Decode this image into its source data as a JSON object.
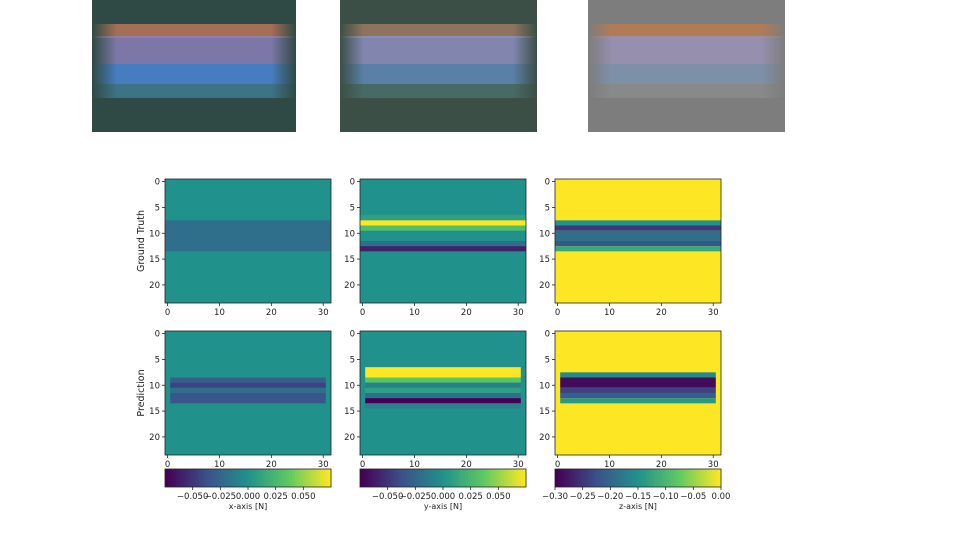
{
  "photos": [
    {
      "name": "tactile-image-1",
      "base": "#2f4a44",
      "bands": [
        "#b8745a",
        "#8a7fb8",
        "#4a86d6",
        "#3f7a92"
      ]
    },
    {
      "name": "tactile-image-2",
      "base": "#3b4f46",
      "bands": [
        "#9c7a63",
        "#8e8fc0",
        "#5e88b8",
        "#4a6f6a"
      ]
    },
    {
      "name": "tactile-image-3",
      "base": "#7d7d7d",
      "bands": [
        "#b97b4e",
        "#9a92b6",
        "#7e93b0",
        "#8a8c8c"
      ]
    }
  ],
  "colormap": [
    "#440154",
    "#3b528b",
    "#21918c",
    "#5ec962",
    "#fde725"
  ],
  "chart_data": {
    "type": "heatmap",
    "rows": [
      "Ground Truth",
      "Prediction"
    ],
    "grid": {
      "cols": 32,
      "rows": 24
    },
    "x_ticks": [
      "0",
      "10",
      "20",
      "30"
    ],
    "y_ticks": [
      "0",
      "5",
      "10",
      "15",
      "20"
    ],
    "panels": [
      {
        "axis": "x-axis [N]",
        "vmin": -0.075,
        "vmax": 0.075,
        "colorbar_ticks": [
          "−0.050",
          "−0.025",
          "0.000",
          "0.025",
          "0.050"
        ],
        "colorbar_tick_values": [
          -0.05,
          -0.025,
          0.0,
          0.025,
          0.05
        ],
        "background": 0.0,
        "ground_truth_bands": [
          {
            "row_from": 8,
            "row_to": 14,
            "value": -0.02
          }
        ],
        "prediction_bands": [
          {
            "row_from": 9,
            "row_to": 10,
            "value": -0.03
          },
          {
            "row_from": 10,
            "row_to": 11,
            "value": -0.045
          },
          {
            "row_from": 11,
            "row_to": 12,
            "value": -0.02
          },
          {
            "row_from": 12,
            "row_to": 14,
            "value": -0.035
          }
        ]
      },
      {
        "axis": "y-axis [N]",
        "vmin": -0.075,
        "vmax": 0.075,
        "colorbar_ticks": [
          "−0.050",
          "−0.025",
          "0.000",
          "0.025",
          "0.050"
        ],
        "colorbar_tick_values": [
          -0.05,
          -0.025,
          0.0,
          0.025,
          0.05
        ],
        "background": 0.0,
        "ground_truth_bands": [
          {
            "row_from": 7,
            "row_to": 8,
            "value": 0.01
          },
          {
            "row_from": 8,
            "row_to": 9,
            "value": 0.075
          },
          {
            "row_from": 9,
            "row_to": 10,
            "value": 0.03
          },
          {
            "row_from": 12,
            "row_to": 13,
            "value": -0.02
          },
          {
            "row_from": 13,
            "row_to": 14,
            "value": -0.06
          }
        ],
        "prediction_bands": [
          {
            "row_from": 7,
            "row_to": 9,
            "value": 0.075
          },
          {
            "row_from": 9,
            "row_to": 10,
            "value": 0.035
          },
          {
            "row_from": 10,
            "row_to": 11,
            "value": -0.01
          },
          {
            "row_from": 11,
            "row_to": 12,
            "value": 0.01
          },
          {
            "row_from": 12,
            "row_to": 13,
            "value": -0.02
          },
          {
            "row_from": 13,
            "row_to": 14,
            "value": -0.075
          },
          {
            "row_from": 14,
            "row_to": 15,
            "value": -0.01
          }
        ]
      },
      {
        "axis": "z-axis [N]",
        "vmin": -0.3,
        "vmax": 0.0,
        "colorbar_ticks": [
          "−0.30",
          "−0.25",
          "−0.20",
          "−0.15",
          "−0.10",
          "−0.05",
          "0.00"
        ],
        "colorbar_tick_values": [
          -0.3,
          -0.25,
          -0.2,
          -0.15,
          -0.1,
          -0.05,
          0.0
        ],
        "background": 0.0,
        "ground_truth_bands": [
          {
            "row_from": 8,
            "row_to": 9,
            "value": -0.15
          },
          {
            "row_from": 9,
            "row_to": 10,
            "value": -0.25
          },
          {
            "row_from": 10,
            "row_to": 12,
            "value": -0.19
          },
          {
            "row_from": 12,
            "row_to": 13,
            "value": -0.22
          },
          {
            "row_from": 13,
            "row_to": 14,
            "value": -0.12
          }
        ],
        "prediction_bands": [
          {
            "row_from": 8,
            "row_to": 9,
            "value": -0.16
          },
          {
            "row_from": 9,
            "row_to": 11,
            "value": -0.29
          },
          {
            "row_from": 11,
            "row_to": 12,
            "value": -0.24
          },
          {
            "row_from": 12,
            "row_to": 13,
            "value": -0.21
          },
          {
            "row_from": 13,
            "row_to": 14,
            "value": -0.14
          }
        ]
      }
    ]
  }
}
